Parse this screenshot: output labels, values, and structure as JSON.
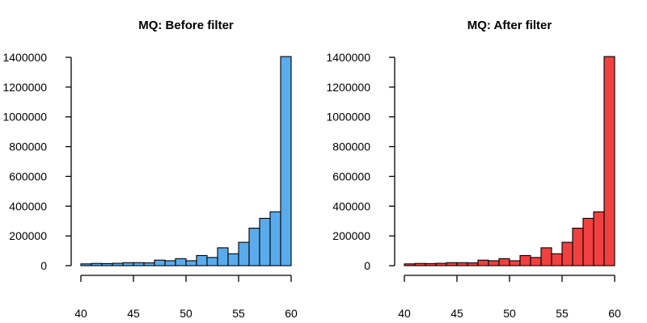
{
  "chart_data": [
    {
      "type": "bar",
      "title": "MQ: Before filter",
      "xlabel": "",
      "ylabel": "",
      "fill_color": "#5aabeb",
      "x_ticks": [
        40,
        45,
        50,
        55,
        60
      ],
      "y_ticks": [
        0,
        200000,
        400000,
        600000,
        800000,
        1000000,
        1200000,
        1400000
      ],
      "xlim": [
        40,
        60
      ],
      "ylim": [
        0,
        1400000
      ],
      "bin_edges": [
        40,
        41,
        42,
        43,
        44,
        45,
        46,
        47,
        48,
        49,
        50,
        51,
        52,
        53,
        54,
        55,
        56,
        57,
        58,
        59,
        60
      ],
      "values": [
        12000,
        15000,
        14000,
        16000,
        20000,
        20000,
        19000,
        37000,
        33000,
        47000,
        33000,
        68000,
        55000,
        120000,
        80000,
        157000,
        252000,
        318000,
        362000,
        1405000
      ]
    },
    {
      "type": "bar",
      "title": "MQ: After filter",
      "xlabel": "",
      "ylabel": "",
      "fill_color": "#f04040",
      "x_ticks": [
        40,
        45,
        50,
        55,
        60
      ],
      "y_ticks": [
        0,
        200000,
        400000,
        600000,
        800000,
        1000000,
        1200000,
        1400000
      ],
      "xlim": [
        40,
        60
      ],
      "ylim": [
        0,
        1400000
      ],
      "bin_edges": [
        40,
        41,
        42,
        43,
        44,
        45,
        46,
        47,
        48,
        49,
        50,
        51,
        52,
        53,
        54,
        55,
        56,
        57,
        58,
        59,
        60
      ],
      "values": [
        12000,
        15000,
        14000,
        16000,
        20000,
        20000,
        19000,
        37000,
        33000,
        47000,
        33000,
        68000,
        55000,
        120000,
        80000,
        157000,
        252000,
        318000,
        362000,
        1405000
      ]
    }
  ]
}
